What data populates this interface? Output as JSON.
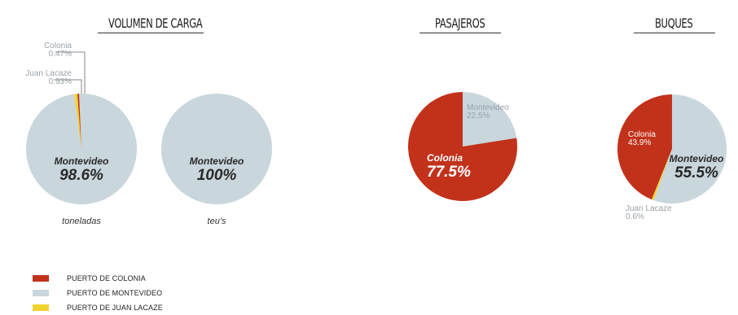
{
  "colors": {
    "colonia": "#c2321b",
    "montevideo": "#c9d6dc",
    "juan_lacaze": "#f2d330"
  },
  "sections": {
    "volumen": "VOLUMEN DE CARGA",
    "pasajeros": "PASAJEROS",
    "buques": "BUQUES"
  },
  "legend": [
    {
      "label": "PUERTO DE COLONIA",
      "color": "#c2321b"
    },
    {
      "label": "PUERTO DE MONTEVIDEO",
      "color": "#c9d6dc"
    },
    {
      "label": "PUERTO DE JUAN LACAZE",
      "color": "#f2d330"
    }
  ],
  "chart_data": [
    {
      "type": "pie",
      "section": "VOLUMEN DE CARGA",
      "caption": "toneladas",
      "slices": [
        {
          "label": "Montevideo",
          "value": 98.6,
          "display": "98.6%",
          "color": "#c9d6dc"
        },
        {
          "label": "Juan Lacaze",
          "value": 0.93,
          "display": "0.93%",
          "color": "#f2d330"
        },
        {
          "label": "Colonia",
          "value": 0.47,
          "display": "0.47%",
          "color": "#c2321b"
        }
      ]
    },
    {
      "type": "pie",
      "section": "VOLUMEN DE CARGA",
      "caption": "teu's",
      "slices": [
        {
          "label": "Montevideo",
          "value": 100,
          "display": "100%",
          "color": "#c9d6dc"
        }
      ]
    },
    {
      "type": "pie",
      "section": "PASAJEROS",
      "caption": "",
      "slices": [
        {
          "label": "Montevideo",
          "value": 22.5,
          "display": "22.5%",
          "color": "#c9d6dc"
        },
        {
          "label": "Colonia",
          "value": 77.5,
          "display": "77.5%",
          "color": "#c2321b"
        }
      ]
    },
    {
      "type": "pie",
      "section": "BUQUES",
      "caption": "",
      "slices": [
        {
          "label": "Montevideo",
          "value": 55.5,
          "display": "55.5%",
          "color": "#c9d6dc"
        },
        {
          "label": "Juan Lacaze",
          "value": 0.6,
          "display": "0.6%",
          "color": "#f2d330"
        },
        {
          "label": "Colonia",
          "value": 43.9,
          "display": "43.9%",
          "color": "#c2321b"
        }
      ]
    }
  ]
}
